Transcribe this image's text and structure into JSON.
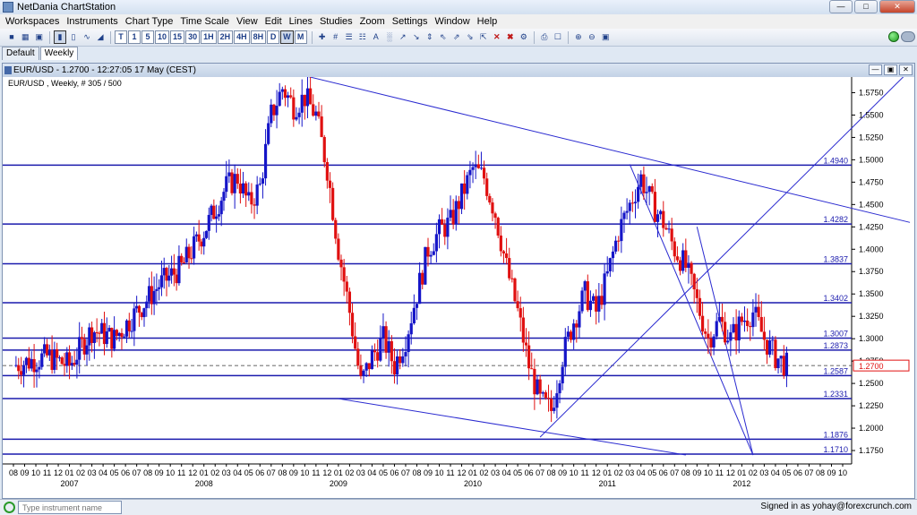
{
  "window": {
    "title": "NetDania ChartStation"
  },
  "menu": [
    "Workspaces",
    "Instruments",
    "Chart Type",
    "Time Scale",
    "View",
    "Edit",
    "Lines",
    "Studies",
    "Zoom",
    "Settings",
    "Window",
    "Help"
  ],
  "toolbar": {
    "timeframes": [
      "T",
      "1",
      "5",
      "10",
      "15",
      "30",
      "1H",
      "2H",
      "4H",
      "8H",
      "D",
      "W",
      "M"
    ],
    "selected_timeframe": "W"
  },
  "tabs": [
    {
      "label": "Default",
      "active": false
    },
    {
      "label": "Weekly",
      "active": true
    }
  ],
  "chart_window": {
    "title": "EUR/USD - 1.2700 - 12:27:05 17 May (CEST)"
  },
  "chart_data": {
    "type": "candlestick",
    "instrument_label": "EUR/USD , Weekly, # 305 / 500",
    "current_price": "1.2700",
    "ylim": [
      1.72,
      1.59
    ],
    "y_ticks": [
      "1.5750",
      "1.5500",
      "1.5250",
      "1.5000",
      "1.4750",
      "1.4500",
      "1.4250",
      "1.4000",
      "1.3750",
      "1.3500",
      "1.3250",
      "1.3000",
      "1.2750",
      "1.2500",
      "1.2250",
      "1.2000",
      "1.1750"
    ],
    "y_tick_values": [
      1.575,
      1.55,
      1.525,
      1.5,
      1.475,
      1.45,
      1.425,
      1.4,
      1.375,
      1.35,
      1.325,
      1.3,
      1.275,
      1.25,
      1.225,
      1.2,
      1.175
    ],
    "horizontal_levels": [
      {
        "label": "1.4940",
        "value": 1.494
      },
      {
        "label": "1.4282",
        "value": 1.4282
      },
      {
        "label": "1.3837",
        "value": 1.3837
      },
      {
        "label": "1.3402",
        "value": 1.3402
      },
      {
        "label": "1.3007",
        "value": 1.3007
      },
      {
        "label": "1.2873",
        "value": 1.2873
      },
      {
        "label": "1.2587",
        "value": 1.2587
      },
      {
        "label": "1.2331",
        "value": 1.2331
      },
      {
        "label": "1.1876",
        "value": 1.1876
      },
      {
        "label": "1.1710",
        "value": 1.171
      }
    ],
    "month_ticks": [
      "08",
      "09",
      "10",
      "11",
      "12",
      "01",
      "02",
      "03",
      "04",
      "05",
      "06",
      "07",
      "08",
      "09",
      "10",
      "11",
      "12",
      "01",
      "02",
      "03",
      "04",
      "05",
      "06",
      "07",
      "08",
      "09",
      "10",
      "11",
      "12",
      "01",
      "02",
      "03",
      "04",
      "05",
      "06",
      "07",
      "08",
      "09",
      "10",
      "11",
      "12",
      "01",
      "02",
      "03",
      "04",
      "05",
      "06",
      "07",
      "08",
      "09",
      "10",
      "11",
      "12",
      "01",
      "02",
      "03",
      "04",
      "05",
      "06",
      "07",
      "08",
      "09",
      "10",
      "11",
      "12",
      "01",
      "02",
      "03",
      "04",
      "05",
      "06",
      "07",
      "08",
      "09",
      "10"
    ],
    "years": [
      {
        "label": "2007",
        "month_index": 5
      },
      {
        "label": "2008",
        "month_index": 17
      },
      {
        "label": "2009",
        "month_index": 29
      },
      {
        "label": "2010",
        "month_index": 41
      },
      {
        "label": "2011",
        "month_index": 53
      },
      {
        "label": "2012",
        "month_index": 65
      }
    ],
    "price_path": [
      [
        0,
        1.27
      ],
      [
        3,
        1.28
      ],
      [
        5,
        1.27
      ],
      [
        7,
        1.31
      ],
      [
        9,
        1.3
      ],
      [
        11,
        1.33
      ],
      [
        13,
        1.36
      ],
      [
        15,
        1.38
      ],
      [
        17,
        1.42
      ],
      [
        19,
        1.47
      ],
      [
        20,
        1.48
      ],
      [
        21,
        1.45
      ],
      [
        22,
        1.47
      ],
      [
        23,
        1.55
      ],
      [
        24,
        1.58
      ],
      [
        25,
        1.56
      ],
      [
        26,
        1.57
      ],
      [
        27,
        1.55
      ],
      [
        28,
        1.49
      ],
      [
        29,
        1.4
      ],
      [
        30,
        1.33
      ],
      [
        31,
        1.25
      ],
      [
        32,
        1.28
      ],
      [
        33,
        1.3
      ],
      [
        34,
        1.27
      ],
      [
        35,
        1.3
      ],
      [
        36,
        1.35
      ],
      [
        37,
        1.4
      ],
      [
        38,
        1.42
      ],
      [
        39,
        1.43
      ],
      [
        40,
        1.46
      ],
      [
        41,
        1.49
      ],
      [
        42,
        1.48
      ],
      [
        43,
        1.44
      ],
      [
        44,
        1.38
      ],
      [
        45,
        1.33
      ],
      [
        46,
        1.27
      ],
      [
        47,
        1.23
      ],
      [
        48,
        1.22
      ],
      [
        49,
        1.28
      ],
      [
        50,
        1.32
      ],
      [
        51,
        1.35
      ],
      [
        52,
        1.33
      ],
      [
        53,
        1.37
      ],
      [
        54,
        1.42
      ],
      [
        55,
        1.45
      ],
      [
        56,
        1.48
      ],
      [
        57,
        1.45
      ],
      [
        58,
        1.43
      ],
      [
        59,
        1.4
      ],
      [
        60,
        1.38
      ],
      [
        61,
        1.34
      ],
      [
        62,
        1.3
      ],
      [
        63,
        1.32
      ],
      [
        64,
        1.3
      ],
      [
        65,
        1.32
      ],
      [
        66,
        1.33
      ],
      [
        67,
        1.3
      ],
      [
        68,
        1.28
      ],
      [
        69,
        1.27
      ]
    ],
    "trendlines": [
      {
        "from": [
          24,
          1.6
        ],
        "to": [
          80,
          1.43
        ]
      },
      {
        "from": [
          29,
          1.233
        ],
        "to": [
          60,
          1.17
        ]
      },
      {
        "from": [
          47,
          1.19
        ],
        "to": [
          80,
          1.6
        ]
      },
      {
        "from": [
          55,
          1.495
        ],
        "to": [
          66,
          1.17
        ]
      },
      {
        "from": [
          61,
          1.425
        ],
        "to": [
          66,
          1.17
        ]
      }
    ]
  },
  "statusbar": {
    "instrument_placeholder": "Type instrument name",
    "signed_in": "Signed in as yohay@forexcrunch.com"
  },
  "colors": {
    "up": "#1515c8",
    "down": "#e01010",
    "level": "#1a1aad",
    "accent": "#2a9a2a"
  }
}
